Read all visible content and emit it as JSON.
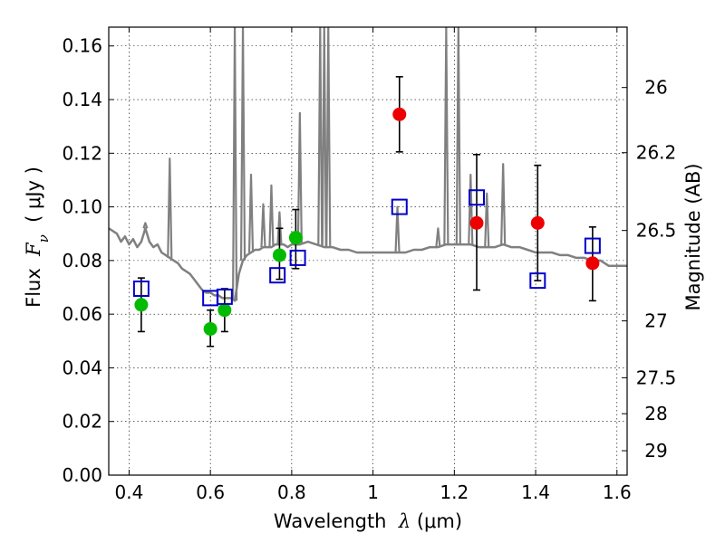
{
  "chart_data": {
    "type": "scatter",
    "title": "",
    "xlabel": {
      "prefix": "Wavelength  ",
      "symbol": "λ",
      "unit": " (μm)"
    },
    "ylabel": {
      "prefix": "Flux  ",
      "symbol": "F",
      "subscript": "ν",
      "unit": "  ( μJy )"
    },
    "y2label": "Magnitude (AB)",
    "xlim": [
      0.35,
      1.625
    ],
    "ylim": [
      0.0,
      0.167
    ],
    "x_ticks": [
      0.4,
      0.6,
      0.8,
      1.0,
      1.2,
      1.4,
      1.6
    ],
    "x_tick_labels": [
      "0.4",
      "0.6",
      "0.8",
      "1",
      "1.2",
      "1.4",
      "1.6"
    ],
    "y_ticks": [
      0.0,
      0.02,
      0.04,
      0.06,
      0.08,
      0.1,
      0.12,
      0.14,
      0.16
    ],
    "y_tick_labels": [
      "0.00",
      "0.02",
      "0.04",
      "0.06",
      "0.08",
      "0.10",
      "0.12",
      "0.14",
      "0.16"
    ],
    "y2_tick_labels": [
      "26",
      "26.2",
      "26.5",
      "27",
      "27.5",
      "28",
      "29"
    ],
    "y2_ticks_flux": [
      0.1445,
      0.1202,
      0.0912,
      0.0575,
      0.0363,
      0.0229,
      0.0091
    ],
    "grid": true,
    "colors": {
      "spectrum": "#808080",
      "green_points": "#00bb00",
      "red_points": "#ee0000",
      "model_squares": "#0000cc",
      "error_bars": "#000000"
    },
    "series": [
      {
        "marker": "line",
        "points": [
          [
            0.35,
            0.092
          ],
          [
            0.37,
            0.09
          ],
          [
            0.38,
            0.087
          ],
          [
            0.39,
            0.089
          ],
          [
            0.4,
            0.086
          ],
          [
            0.41,
            0.088
          ],
          [
            0.42,
            0.085
          ],
          [
            0.43,
            0.087
          ],
          [
            0.44,
            0.092
          ],
          [
            0.45,
            0.087
          ],
          [
            0.46,
            0.085
          ],
          [
            0.47,
            0.086
          ],
          [
            0.48,
            0.083
          ],
          [
            0.49,
            0.082
          ],
          [
            0.5,
            0.081
          ],
          [
            0.51,
            0.08
          ],
          [
            0.52,
            0.079
          ],
          [
            0.53,
            0.077
          ],
          [
            0.54,
            0.076
          ],
          [
            0.55,
            0.075
          ],
          [
            0.56,
            0.073
          ],
          [
            0.57,
            0.071
          ],
          [
            0.58,
            0.069
          ],
          [
            0.59,
            0.068
          ],
          [
            0.6,
            0.068
          ],
          [
            0.61,
            0.067
          ],
          [
            0.62,
            0.067
          ],
          [
            0.63,
            0.066
          ],
          [
            0.64,
            0.066
          ],
          [
            0.65,
            0.066
          ],
          [
            0.66,
            0.065
          ],
          [
            0.67,
            0.075
          ],
          [
            0.68,
            0.08
          ],
          [
            0.69,
            0.082
          ],
          [
            0.7,
            0.083
          ],
          [
            0.71,
            0.084
          ],
          [
            0.72,
            0.084
          ],
          [
            0.73,
            0.085
          ],
          [
            0.74,
            0.085
          ],
          [
            0.75,
            0.085
          ],
          [
            0.76,
            0.086
          ],
          [
            0.77,
            0.086
          ],
          [
            0.78,
            0.086
          ],
          [
            0.79,
            0.085
          ],
          [
            0.8,
            0.086
          ],
          [
            0.82,
            0.086
          ],
          [
            0.84,
            0.087
          ],
          [
            0.86,
            0.086
          ],
          [
            0.88,
            0.085
          ],
          [
            0.9,
            0.085
          ],
          [
            0.92,
            0.084
          ],
          [
            0.94,
            0.084
          ],
          [
            0.96,
            0.083
          ],
          [
            0.98,
            0.083
          ],
          [
            1.0,
            0.083
          ],
          [
            1.02,
            0.083
          ],
          [
            1.04,
            0.083
          ],
          [
            1.06,
            0.083
          ],
          [
            1.08,
            0.083
          ],
          [
            1.1,
            0.084
          ],
          [
            1.12,
            0.084
          ],
          [
            1.14,
            0.085
          ],
          [
            1.16,
            0.085
          ],
          [
            1.18,
            0.086
          ],
          [
            1.2,
            0.086
          ],
          [
            1.22,
            0.086
          ],
          [
            1.24,
            0.086
          ],
          [
            1.26,
            0.085
          ],
          [
            1.28,
            0.085
          ],
          [
            1.3,
            0.085
          ],
          [
            1.32,
            0.086
          ],
          [
            1.34,
            0.085
          ],
          [
            1.36,
            0.085
          ],
          [
            1.38,
            0.084
          ],
          [
            1.4,
            0.083
          ],
          [
            1.42,
            0.083
          ],
          [
            1.44,
            0.083
          ],
          [
            1.46,
            0.082
          ],
          [
            1.48,
            0.082
          ],
          [
            1.5,
            0.081
          ],
          [
            1.52,
            0.081
          ],
          [
            1.54,
            0.08
          ],
          [
            1.56,
            0.08
          ],
          [
            1.58,
            0.078
          ],
          [
            1.6,
            0.078
          ],
          [
            1.625,
            0.078
          ]
        ],
        "emission_lines": [
          [
            0.44,
            0.094
          ],
          [
            0.5,
            0.118
          ],
          [
            0.66,
            0.167
          ],
          [
            0.68,
            0.167
          ],
          [
            0.7,
            0.112
          ],
          [
            0.73,
            0.101
          ],
          [
            0.75,
            0.108
          ],
          [
            0.77,
            0.098
          ],
          [
            0.82,
            0.135
          ],
          [
            0.87,
            0.167
          ],
          [
            0.88,
            0.167
          ],
          [
            0.89,
            0.167
          ],
          [
            1.06,
            0.1
          ],
          [
            1.16,
            0.092
          ],
          [
            1.18,
            0.167
          ],
          [
            1.21,
            0.167
          ],
          [
            1.24,
            0.112
          ],
          [
            1.28,
            0.105
          ],
          [
            1.32,
            0.116
          ]
        ]
      },
      {
        "marker": "circle",
        "points": [
          {
            "x": 0.43,
            "y": 0.0635,
            "lo": 0.0535,
            "hi": 0.0735
          },
          {
            "x": 0.6,
            "y": 0.0545,
            "lo": 0.048,
            "hi": 0.0615
          },
          {
            "x": 0.635,
            "y": 0.0615,
            "lo": 0.0535,
            "hi": 0.0695
          },
          {
            "x": 0.77,
            "y": 0.082,
            "lo": 0.073,
            "hi": 0.092
          },
          {
            "x": 0.81,
            "y": 0.0885,
            "lo": 0.077,
            "hi": 0.099
          }
        ]
      },
      {
        "marker": "circle",
        "points": [
          {
            "x": 1.065,
            "y": 0.1345,
            "lo": 0.1205,
            "hi": 0.1485
          },
          {
            "x": 1.255,
            "y": 0.094,
            "lo": 0.069,
            "hi": 0.1195
          },
          {
            "x": 1.405,
            "y": 0.094,
            "lo": 0.0725,
            "hi": 0.1155
          },
          {
            "x": 1.54,
            "y": 0.079,
            "lo": 0.065,
            "hi": 0.0925
          }
        ]
      },
      {
        "marker": "square",
        "points": [
          {
            "x": 0.43,
            "y": 0.0695
          },
          {
            "x": 0.6,
            "y": 0.066
          },
          {
            "x": 0.635,
            "y": 0.0665
          },
          {
            "x": 0.765,
            "y": 0.0745
          },
          {
            "x": 0.815,
            "y": 0.081
          },
          {
            "x": 1.065,
            "y": 0.1
          },
          {
            "x": 1.255,
            "y": 0.1035
          },
          {
            "x": 1.405,
            "y": 0.0725
          },
          {
            "x": 1.54,
            "y": 0.0855
          }
        ]
      }
    ]
  }
}
